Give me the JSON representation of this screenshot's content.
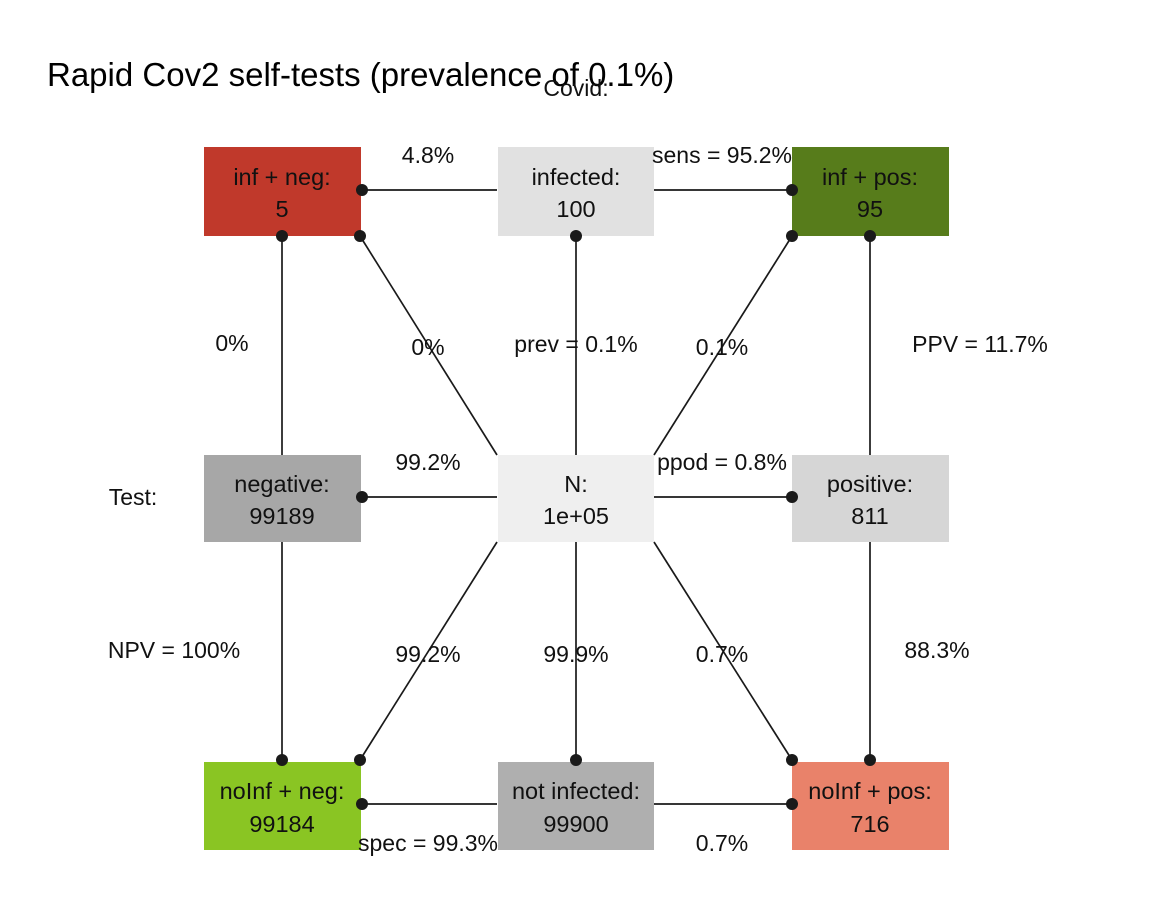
{
  "title": "Rapid Cov2 self-tests (prevalence of 0.1%)",
  "dimension_labels": {
    "covid": "Covid:",
    "test": "Test:"
  },
  "boxes": {
    "inf_neg": {
      "label": "inf + neg:",
      "value": "5",
      "color": "#C0392B"
    },
    "infected": {
      "label": "infected:",
      "value": "100",
      "color": "#E1E1E1"
    },
    "inf_pos": {
      "label": "inf + pos:",
      "value": "95",
      "color": "#577C1B"
    },
    "negative": {
      "label": "negative:",
      "value": "99189",
      "color": "#A7A7A7"
    },
    "n": {
      "label": "N:",
      "value": "1e+05",
      "color": "#EFEFEF"
    },
    "positive": {
      "label": "positive:",
      "value": "811",
      "color": "#D6D6D6"
    },
    "noinf_neg": {
      "label": "noInf + neg:",
      "value": "99184",
      "color": "#8AC523"
    },
    "not_infected": {
      "label": "not infected:",
      "value": "99900",
      "color": "#AFAFAF"
    },
    "noinf_pos": {
      "label": "noInf + pos:",
      "value": "716",
      "color": "#E9826A"
    }
  },
  "edge_labels": {
    "top_left": "4.8%",
    "top_right": "sens = 95.2%",
    "left_upper": "0%",
    "diag_upper_left": "0%",
    "center_upper": "prev = 0.1%",
    "diag_upper_right": "0.1%",
    "right_upper": "PPV = 11.7%",
    "mid_left": "99.2%",
    "mid_right": "ppod = 0.8%",
    "left_lower": "NPV = 100%",
    "diag_lower_left": "99.2%",
    "center_lower": "99.9%",
    "diag_lower_right": "0.7%",
    "right_lower": "88.3%",
    "bottom_left": "spec = 99.3%",
    "bottom_right": "0.7%"
  }
}
